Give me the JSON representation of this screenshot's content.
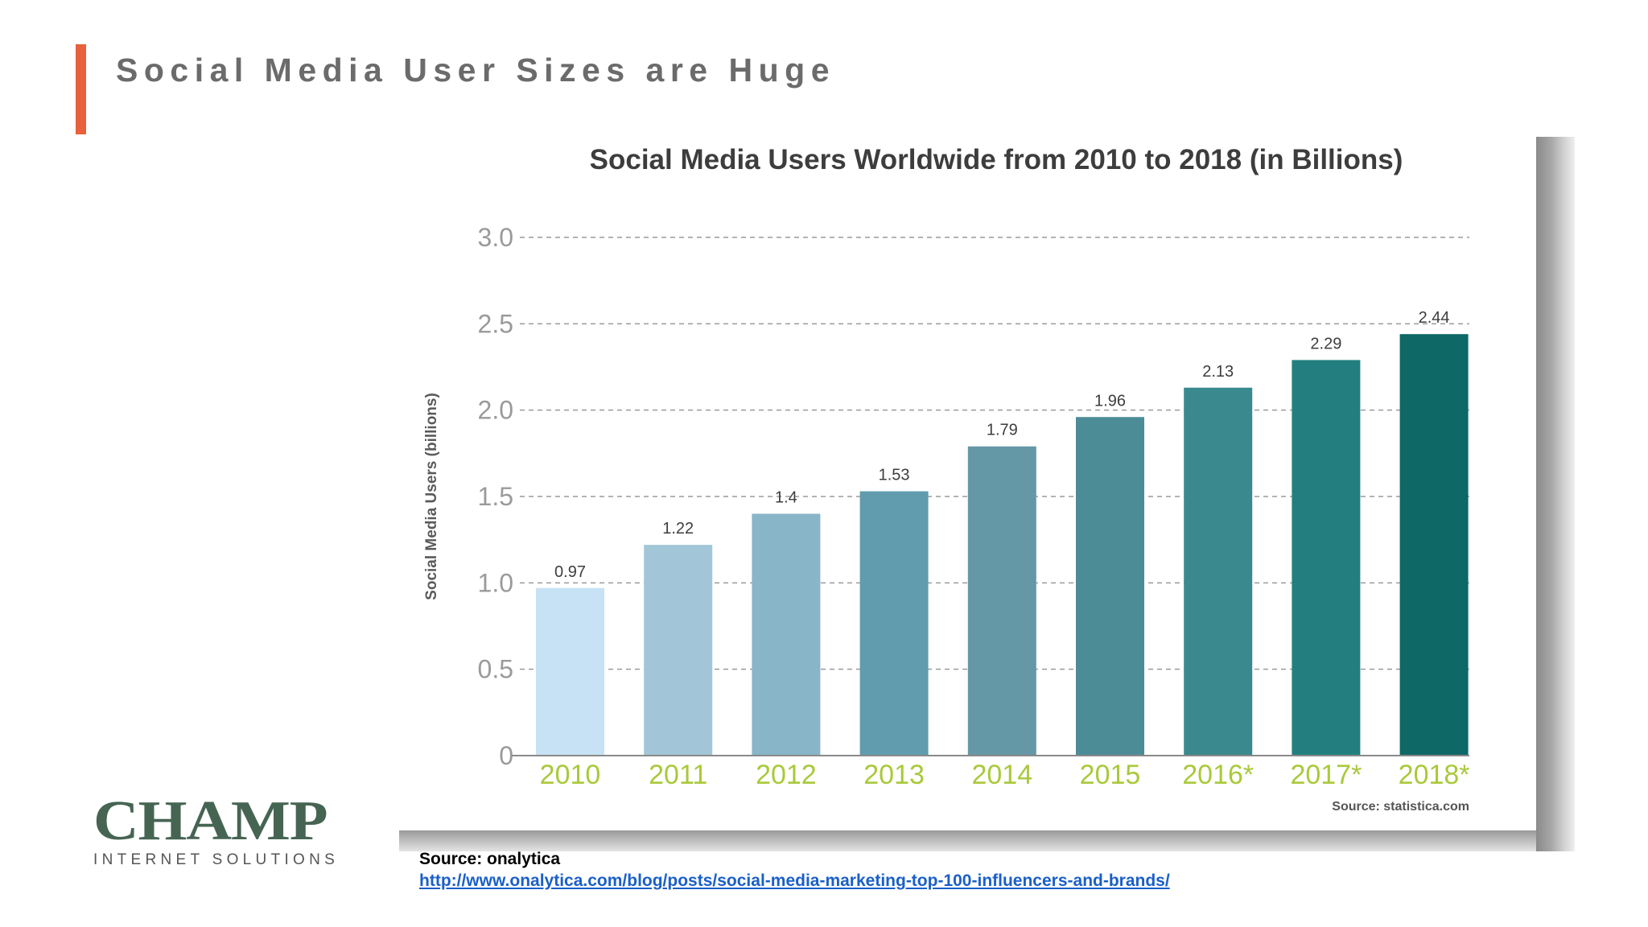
{
  "slide": {
    "title": "Social Media User Sizes are Huge",
    "accent_color": "#e8603c",
    "logo": {
      "main": "CHAMP",
      "sub": "INTERNET SOLUTIONS"
    },
    "source_label": "Source: onalytica",
    "source_link": "http://www.onalytica.com/blog/posts/social-media-marketing-top-100-influencers-and-brands/"
  },
  "chart_data": {
    "type": "bar",
    "title": "Social Media Users Worldwide from 2010 to 2018 (in Billions)",
    "xlabel": "",
    "ylabel": "Social Media Users (billions)",
    "ylim": [
      0,
      3.0
    ],
    "yticks": [
      "0",
      "0.5",
      "1.0",
      "1.5",
      "2.0",
      "2.5",
      "3.0"
    ],
    "grid": true,
    "categories": [
      "2010",
      "2011",
      "2012",
      "2013",
      "2014",
      "2015",
      "2016*",
      "2017*",
      "2018*"
    ],
    "values": [
      0.97,
      1.22,
      1.4,
      1.53,
      1.79,
      1.96,
      2.13,
      2.29,
      2.44
    ],
    "data_labels": [
      "0.97",
      "1.22",
      "1.4",
      "1.53",
      "1.79",
      "1.96",
      "2.13",
      "2.29",
      "2.44"
    ],
    "bar_colors": [
      "#c6e2f4",
      "#a2c6d7",
      "#88b5c7",
      "#609cae",
      "#6598a6",
      "#4c8c97",
      "#3a898e",
      "#237f7f",
      "#0d6866"
    ],
    "category_label_color": "#a9c93a",
    "source": "Source: statistica.com"
  }
}
